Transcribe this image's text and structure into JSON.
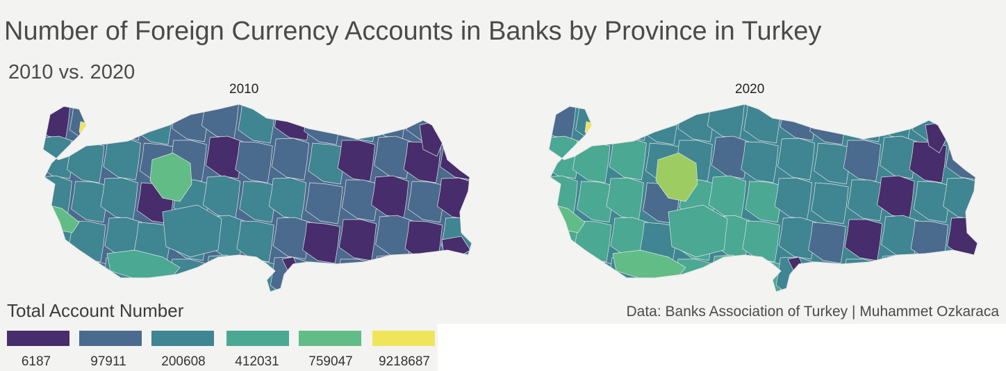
{
  "title": "Number of Foreign Currency Accounts in Banks by Province in Turkey",
  "subtitle": "2010 vs. 2020",
  "panels": [
    "2010",
    "2020"
  ],
  "legend": {
    "title": "Total Account Number",
    "breaks": [
      "6187",
      "97911",
      "200608",
      "412031",
      "759047",
      "9218687"
    ],
    "colors": [
      "#472d6b",
      "#4a6a8e",
      "#3f8592",
      "#4aa893",
      "#62bc86",
      "#f0e45a"
    ]
  },
  "caption": "Data: Banks Association of Turkey | Muhammet Ozkaraca",
  "palette": {
    "lowest": "#472d6b",
    "low": "#4a6a8e",
    "mid": "#3f8592",
    "midhigh": "#4aa893",
    "high": "#62bc86",
    "ankara2020": "#9ccc62",
    "istanbul": "#f0e45a"
  }
}
